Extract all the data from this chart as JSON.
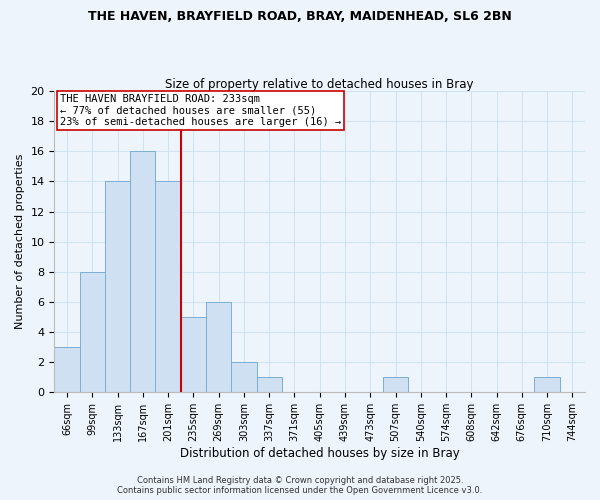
{
  "title_line1": "THE HAVEN, BRAYFIELD ROAD, BRAY, MAIDENHEAD, SL6 2BN",
  "title_line2": "Size of property relative to detached houses in Bray",
  "bar_labels": [
    "66sqm",
    "99sqm",
    "133sqm",
    "167sqm",
    "201sqm",
    "235sqm",
    "269sqm",
    "303sqm",
    "337sqm",
    "371sqm",
    "405sqm",
    "439sqm",
    "473sqm",
    "507sqm",
    "540sqm",
    "574sqm",
    "608sqm",
    "642sqm",
    "676sqm",
    "710sqm",
    "744sqm"
  ],
  "bar_values": [
    3,
    8,
    14,
    16,
    14,
    5,
    6,
    2,
    1,
    0,
    0,
    0,
    0,
    1,
    0,
    0,
    0,
    0,
    0,
    1,
    0
  ],
  "bar_color": "#cfe0f3",
  "bar_edge_color": "#7bafd4",
  "grid_color": "#d0e3f3",
  "vline_color": "#cc0000",
  "xlabel": "Distribution of detached houses by size in Bray",
  "ylabel": "Number of detached properties",
  "ylim": [
    0,
    20
  ],
  "yticks": [
    0,
    2,
    4,
    6,
    8,
    10,
    12,
    14,
    16,
    18,
    20
  ],
  "annotation_title": "THE HAVEN BRAYFIELD ROAD: 233sqm",
  "annotation_line2": "← 77% of detached houses are smaller (55)",
  "annotation_line3": "23% of semi-detached houses are larger (16) →",
  "footer_line1": "Contains HM Land Registry data © Crown copyright and database right 2025.",
  "footer_line2": "Contains public sector information licensed under the Open Government Licence v3.0.",
  "bg_color": "#eef4fb"
}
